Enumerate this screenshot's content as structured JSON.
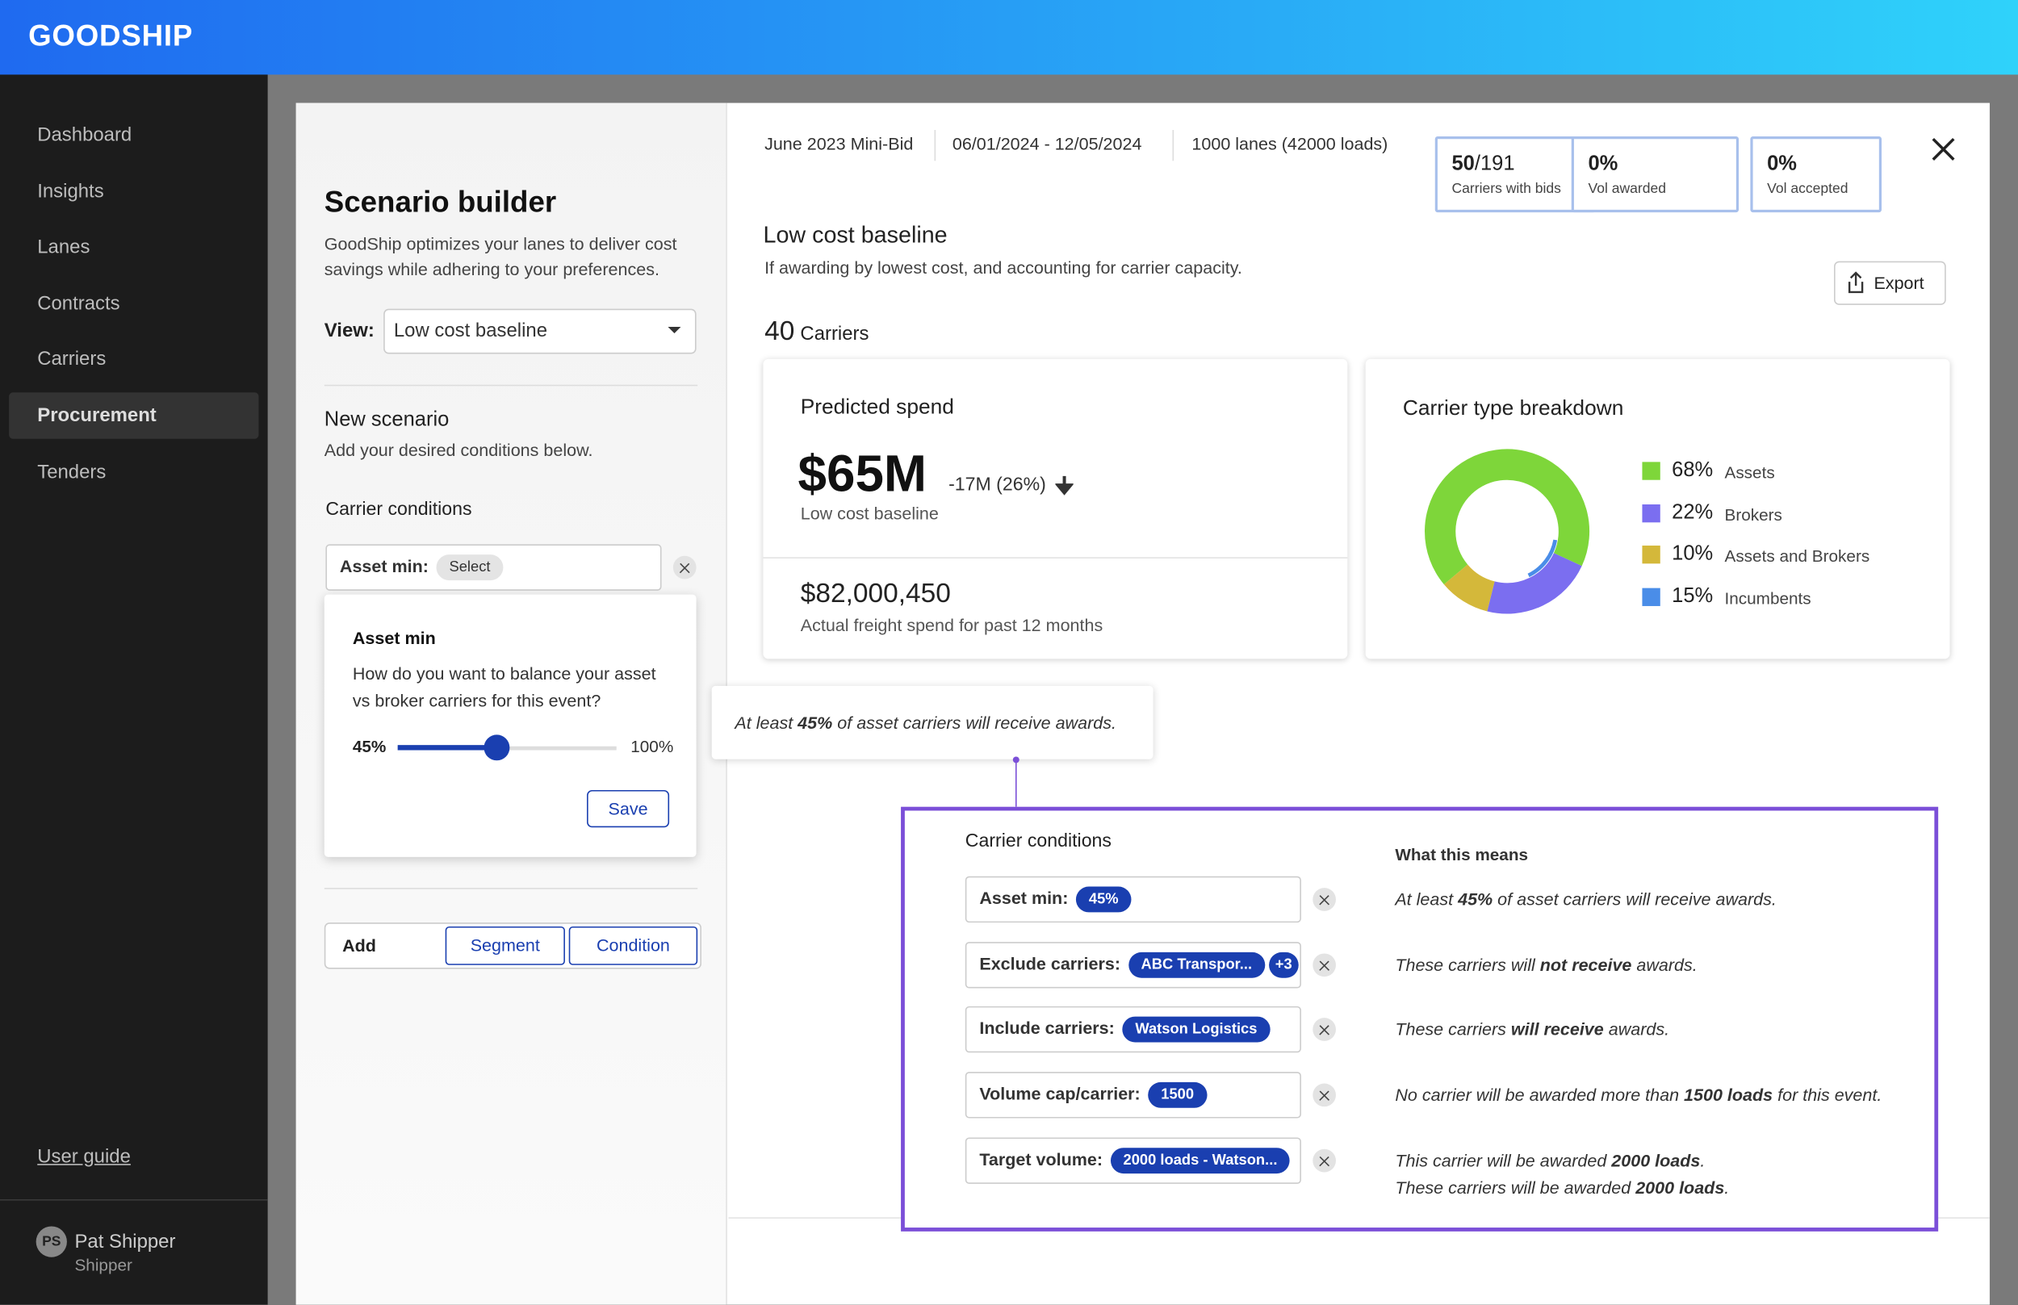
{
  "header": {
    "logo": "GOODSHIP"
  },
  "sidebar": {
    "nav": [
      "Dashboard",
      "Insights",
      "Lanes",
      "Contracts",
      "Carriers",
      "Procurement",
      "Tenders"
    ],
    "user_guide": "User guide",
    "user": {
      "initials": "PS",
      "name": "Pat Shipper",
      "role": "Shipper"
    }
  },
  "builder": {
    "title": "Scenario builder",
    "description": "GoodShip optimizes your lanes to deliver cost savings while adhering to your preferences.",
    "view_label": "View:",
    "view_value": "Low cost baseline",
    "new_scenario_title": "New scenario",
    "new_scenario_hint": "Add your desired conditions below.",
    "carrier_conditions": "Carrier conditions",
    "condition_label": "Asset min:",
    "condition_chip": "Select",
    "popover": {
      "title": "Asset min",
      "question": "How do you want to balance your asset vs broker carriers for this event?",
      "min_label": "45%",
      "max_label": "100%",
      "save": "Save"
    },
    "add": {
      "label": "Add",
      "segment": "Segment",
      "condition": "Condition"
    }
  },
  "summary": {
    "bid": "June 2023 Mini-Bid",
    "dates": "06/01/2024 - 12/05/2024",
    "lanes": "1000 lanes (42000 loads)",
    "stats": [
      {
        "value": "50",
        "total": "/191",
        "label": "Carriers with bids"
      },
      {
        "value": "0%",
        "label": "Vol awarded"
      },
      {
        "value": "0%",
        "label": "Vol accepted"
      }
    ]
  },
  "scenario": {
    "title": "Low cost baseline",
    "subtitle": "If awarding by lowest cost, and accounting for carrier capacity.",
    "export": "Export",
    "carrier_count": "40",
    "carrier_unit": "Carriers"
  },
  "spend": {
    "title": "Predicted spend",
    "value": "$65M",
    "delta": "-17M (26%)",
    "caption": "Low cost baseline",
    "actual": "$82,000,450",
    "actual_caption": "Actual freight spend for past 12 months"
  },
  "breakdown": {
    "title": "Carrier type breakdown",
    "items": [
      {
        "value": 68,
        "label": "68%",
        "name": "Assets",
        "color": "#7ed63a"
      },
      {
        "value": 22,
        "label": "22%",
        "name": "Brokers",
        "color": "#7b6ef0"
      },
      {
        "value": 10,
        "label": "10%",
        "name": "Assets and Brokers",
        "color": "#d4b83a"
      },
      {
        "value": 15,
        "label": "15%",
        "name": "Incumbents",
        "color": "#4a8de8"
      }
    ]
  },
  "tooltip": [
    "At least ",
    "45%",
    " of asset carriers will receive awards."
  ],
  "conditions": {
    "title": "Carrier conditions",
    "meaning_title": "What this means",
    "rows": [
      {
        "label": "Asset min:",
        "chips": [
          "45%"
        ],
        "meaning": [
          [
            "At least ",
            "45%",
            " of asset carriers will receive awards."
          ]
        ]
      },
      {
        "label": "Exclude carriers:",
        "chips": [
          "ABC Transpor...",
          "+3"
        ],
        "meaning": [
          [
            "These carriers will ",
            "not receive",
            " awards."
          ]
        ]
      },
      {
        "label": "Include carriers:",
        "chips": [
          "Watson Logistics"
        ],
        "meaning": [
          [
            "These carriers ",
            "will receive",
            " awards."
          ]
        ]
      },
      {
        "label": "Volume cap/carrier:",
        "chips": [
          "1500"
        ],
        "meaning": [
          [
            "No carrier will be awarded more than ",
            "1500 loads",
            " for this event."
          ]
        ]
      },
      {
        "label": "Target volume:",
        "chips": [
          "2000 loads - Watson..."
        ],
        "meaning": [
          [
            "This carrier will be awarded ",
            "2000 loads",
            "."
          ],
          [
            "These carriers will be awarded ",
            "2000 loads",
            "."
          ]
        ]
      }
    ]
  }
}
